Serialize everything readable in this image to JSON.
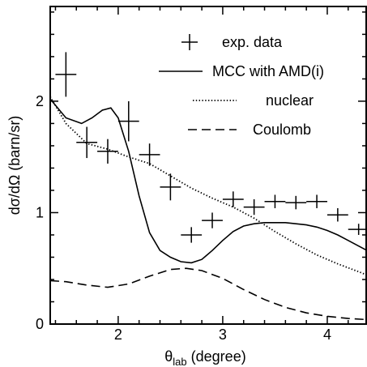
{
  "chart_data": {
    "type": "line",
    "xlabel_main": "θ",
    "xlabel_sub": "lab",
    "xlabel_rest": " (degree)",
    "ylabel": "dσ/dΩ (barn/sr)",
    "xlim": [
      1.35,
      4.38
    ],
    "ylim": [
      0,
      2.85
    ],
    "xticks": [
      2,
      3,
      4
    ],
    "yticks": [
      0,
      1,
      2
    ],
    "x_minor_step": 0.2,
    "y_minor_step": 0.2,
    "legend_position": "top-right",
    "legend": [
      {
        "label": "exp. data",
        "style": "errorbar"
      },
      {
        "label": "MCC with AMD(i)",
        "style": "solid"
      },
      {
        "label": "nuclear",
        "style": "dotted"
      },
      {
        "label": "Coulomb",
        "style": "dashed"
      }
    ],
    "experimental": [
      {
        "x": 1.5,
        "y": 2.24,
        "xerr": 0.1,
        "yerr": 0.2
      },
      {
        "x": 1.7,
        "y": 1.63,
        "xerr": 0.1,
        "yerr": 0.14
      },
      {
        "x": 1.9,
        "y": 1.55,
        "xerr": 0.1,
        "yerr": 0.11
      },
      {
        "x": 2.1,
        "y": 1.82,
        "xerr": 0.1,
        "yerr": 0.18
      },
      {
        "x": 2.3,
        "y": 1.52,
        "xerr": 0.1,
        "yerr": 0.1
      },
      {
        "x": 2.5,
        "y": 1.23,
        "xerr": 0.1,
        "yerr": 0.12
      },
      {
        "x": 2.7,
        "y": 0.8,
        "xerr": 0.1,
        "yerr": 0.07
      },
      {
        "x": 2.9,
        "y": 0.93,
        "xerr": 0.1,
        "yerr": 0.07
      },
      {
        "x": 3.1,
        "y": 1.12,
        "xerr": 0.1,
        "yerr": 0.07
      },
      {
        "x": 3.3,
        "y": 1.05,
        "xerr": 0.1,
        "yerr": 0.07
      },
      {
        "x": 3.5,
        "y": 1.1,
        "xerr": 0.1,
        "yerr": 0.06
      },
      {
        "x": 3.7,
        "y": 1.09,
        "xerr": 0.1,
        "yerr": 0.06
      },
      {
        "x": 3.9,
        "y": 1.1,
        "xerr": 0.1,
        "yerr": 0.06
      },
      {
        "x": 4.1,
        "y": 0.98,
        "xerr": 0.1,
        "yerr": 0.06
      },
      {
        "x": 4.3,
        "y": 0.85,
        "xerr": 0.1,
        "yerr": 0.05
      }
    ],
    "series": [
      {
        "name": "MCC with AMD(i)",
        "style": "solid",
        "x": [
          1.35,
          1.5,
          1.65,
          1.75,
          1.85,
          1.93,
          2.0,
          2.1,
          2.2,
          2.3,
          2.4,
          2.5,
          2.6,
          2.7,
          2.8,
          2.9,
          3.0,
          3.1,
          3.2,
          3.3,
          3.4,
          3.5,
          3.6,
          3.7,
          3.8,
          3.9,
          4.0,
          4.1,
          4.2,
          4.3,
          4.38
        ],
        "y": [
          2.02,
          1.85,
          1.8,
          1.85,
          1.92,
          1.94,
          1.85,
          1.55,
          1.15,
          0.82,
          0.66,
          0.6,
          0.56,
          0.55,
          0.58,
          0.66,
          0.75,
          0.83,
          0.88,
          0.9,
          0.91,
          0.91,
          0.91,
          0.9,
          0.89,
          0.87,
          0.84,
          0.8,
          0.75,
          0.7,
          0.66
        ]
      },
      {
        "name": "nuclear",
        "style": "dotted",
        "x": [
          1.35,
          1.5,
          1.7,
          1.9,
          2.1,
          2.3,
          2.5,
          2.7,
          2.9,
          3.1,
          3.3,
          3.5,
          3.7,
          3.9,
          4.1,
          4.3,
          4.38
        ],
        "y": [
          2.04,
          1.8,
          1.62,
          1.57,
          1.5,
          1.44,
          1.33,
          1.22,
          1.13,
          1.05,
          0.95,
          0.83,
          0.72,
          0.62,
          0.54,
          0.47,
          0.44
        ]
      },
      {
        "name": "Coulomb",
        "style": "dashed",
        "x": [
          1.35,
          1.5,
          1.7,
          1.9,
          2.1,
          2.3,
          2.5,
          2.65,
          2.8,
          3.0,
          3.2,
          3.4,
          3.6,
          3.8,
          4.0,
          4.2,
          4.38
        ],
        "y": [
          0.39,
          0.38,
          0.35,
          0.33,
          0.36,
          0.43,
          0.49,
          0.5,
          0.48,
          0.41,
          0.31,
          0.22,
          0.15,
          0.1,
          0.07,
          0.05,
          0.04
        ]
      }
    ]
  }
}
